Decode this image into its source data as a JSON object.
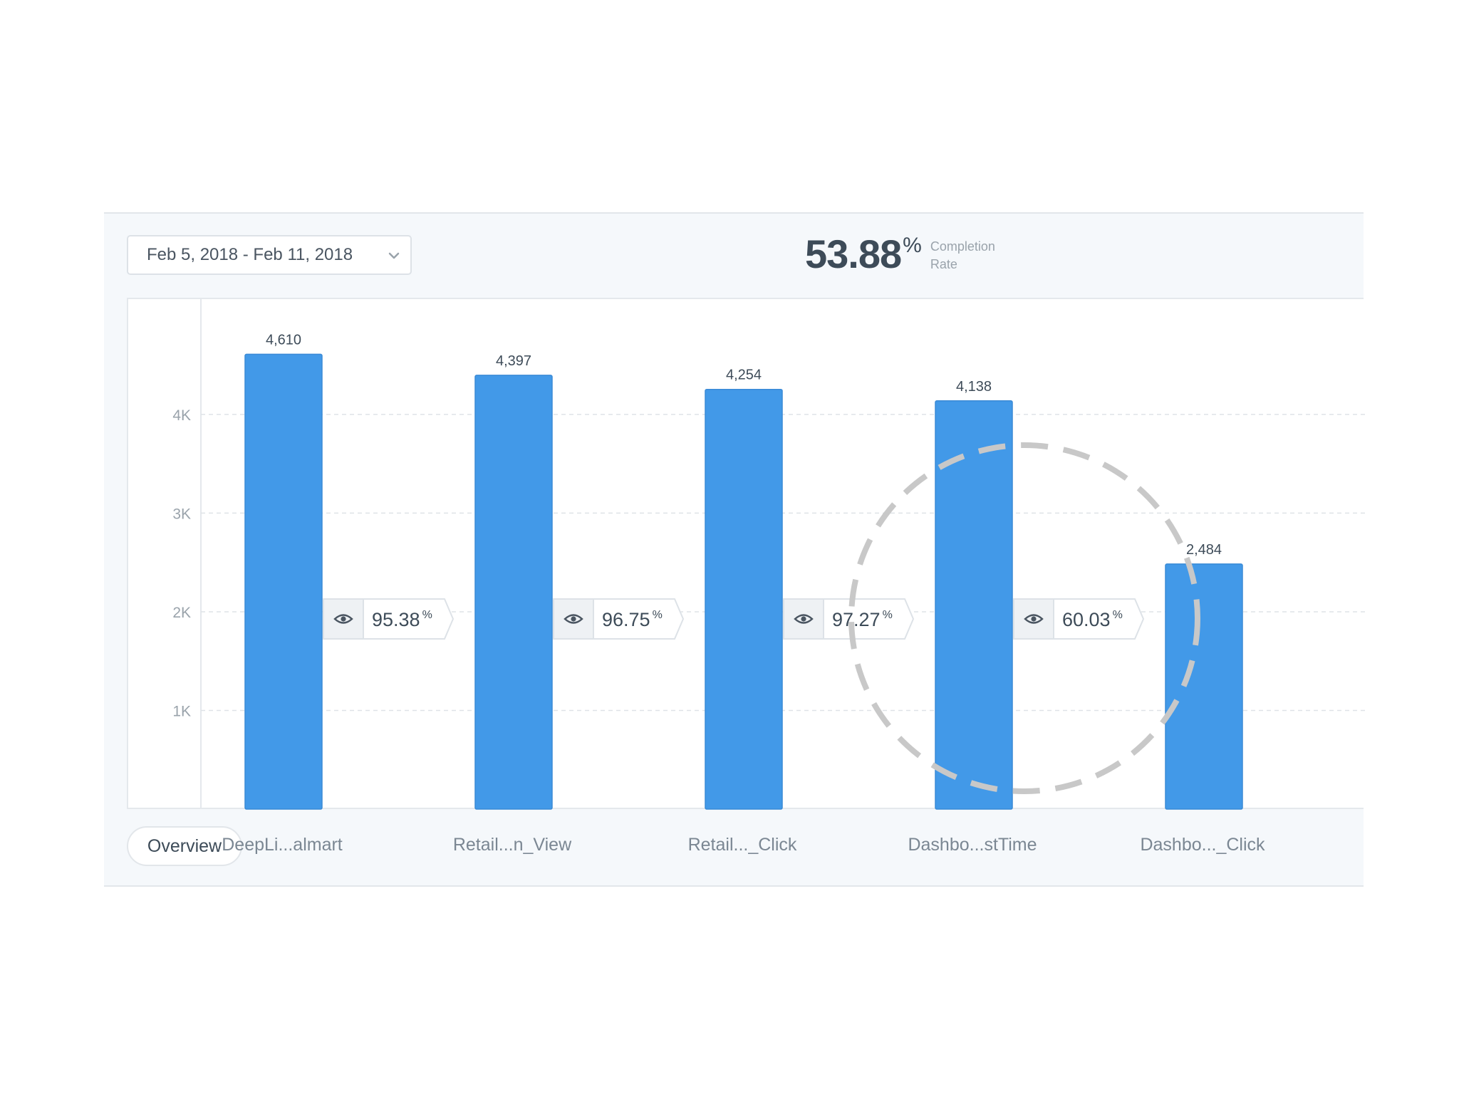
{
  "toolbar": {
    "date_range": "Feb 5, 2018 - Feb 11, 2018",
    "completion_value": "53.88",
    "completion_unit": "%",
    "completion_label_line1": "Completion",
    "completion_label_line2": "Rate"
  },
  "tabs": {
    "overview_label": "Overview"
  },
  "colors": {
    "bar": "#4299e8",
    "bar_outline": "#3a8ad6",
    "highlight_circle": "#c8c8c8"
  },
  "chart_data": {
    "type": "bar",
    "categories": [
      "DeepLi...almart",
      "Retail...n_View",
      "Retail..._Click",
      "Dashbo...stTime",
      "Dashbo..._Click"
    ],
    "values": [
      4610,
      4397,
      4254,
      4138,
      2484
    ],
    "value_labels": [
      "4,610",
      "4,397",
      "4,254",
      "4,138",
      "2,484"
    ],
    "conversion_rates": [
      "95.38",
      "96.75",
      "97.27",
      "60.03"
    ],
    "conversion_unit": "%",
    "y_ticks": [
      1000,
      2000,
      3000,
      4000
    ],
    "y_tick_labels": [
      "1K",
      "2K",
      "3K",
      "4K"
    ],
    "ylim": [
      0,
      4880
    ],
    "grid": true,
    "highlight": "dashed circle around the Dashbo...stTime to Dashbo..._Click step"
  }
}
